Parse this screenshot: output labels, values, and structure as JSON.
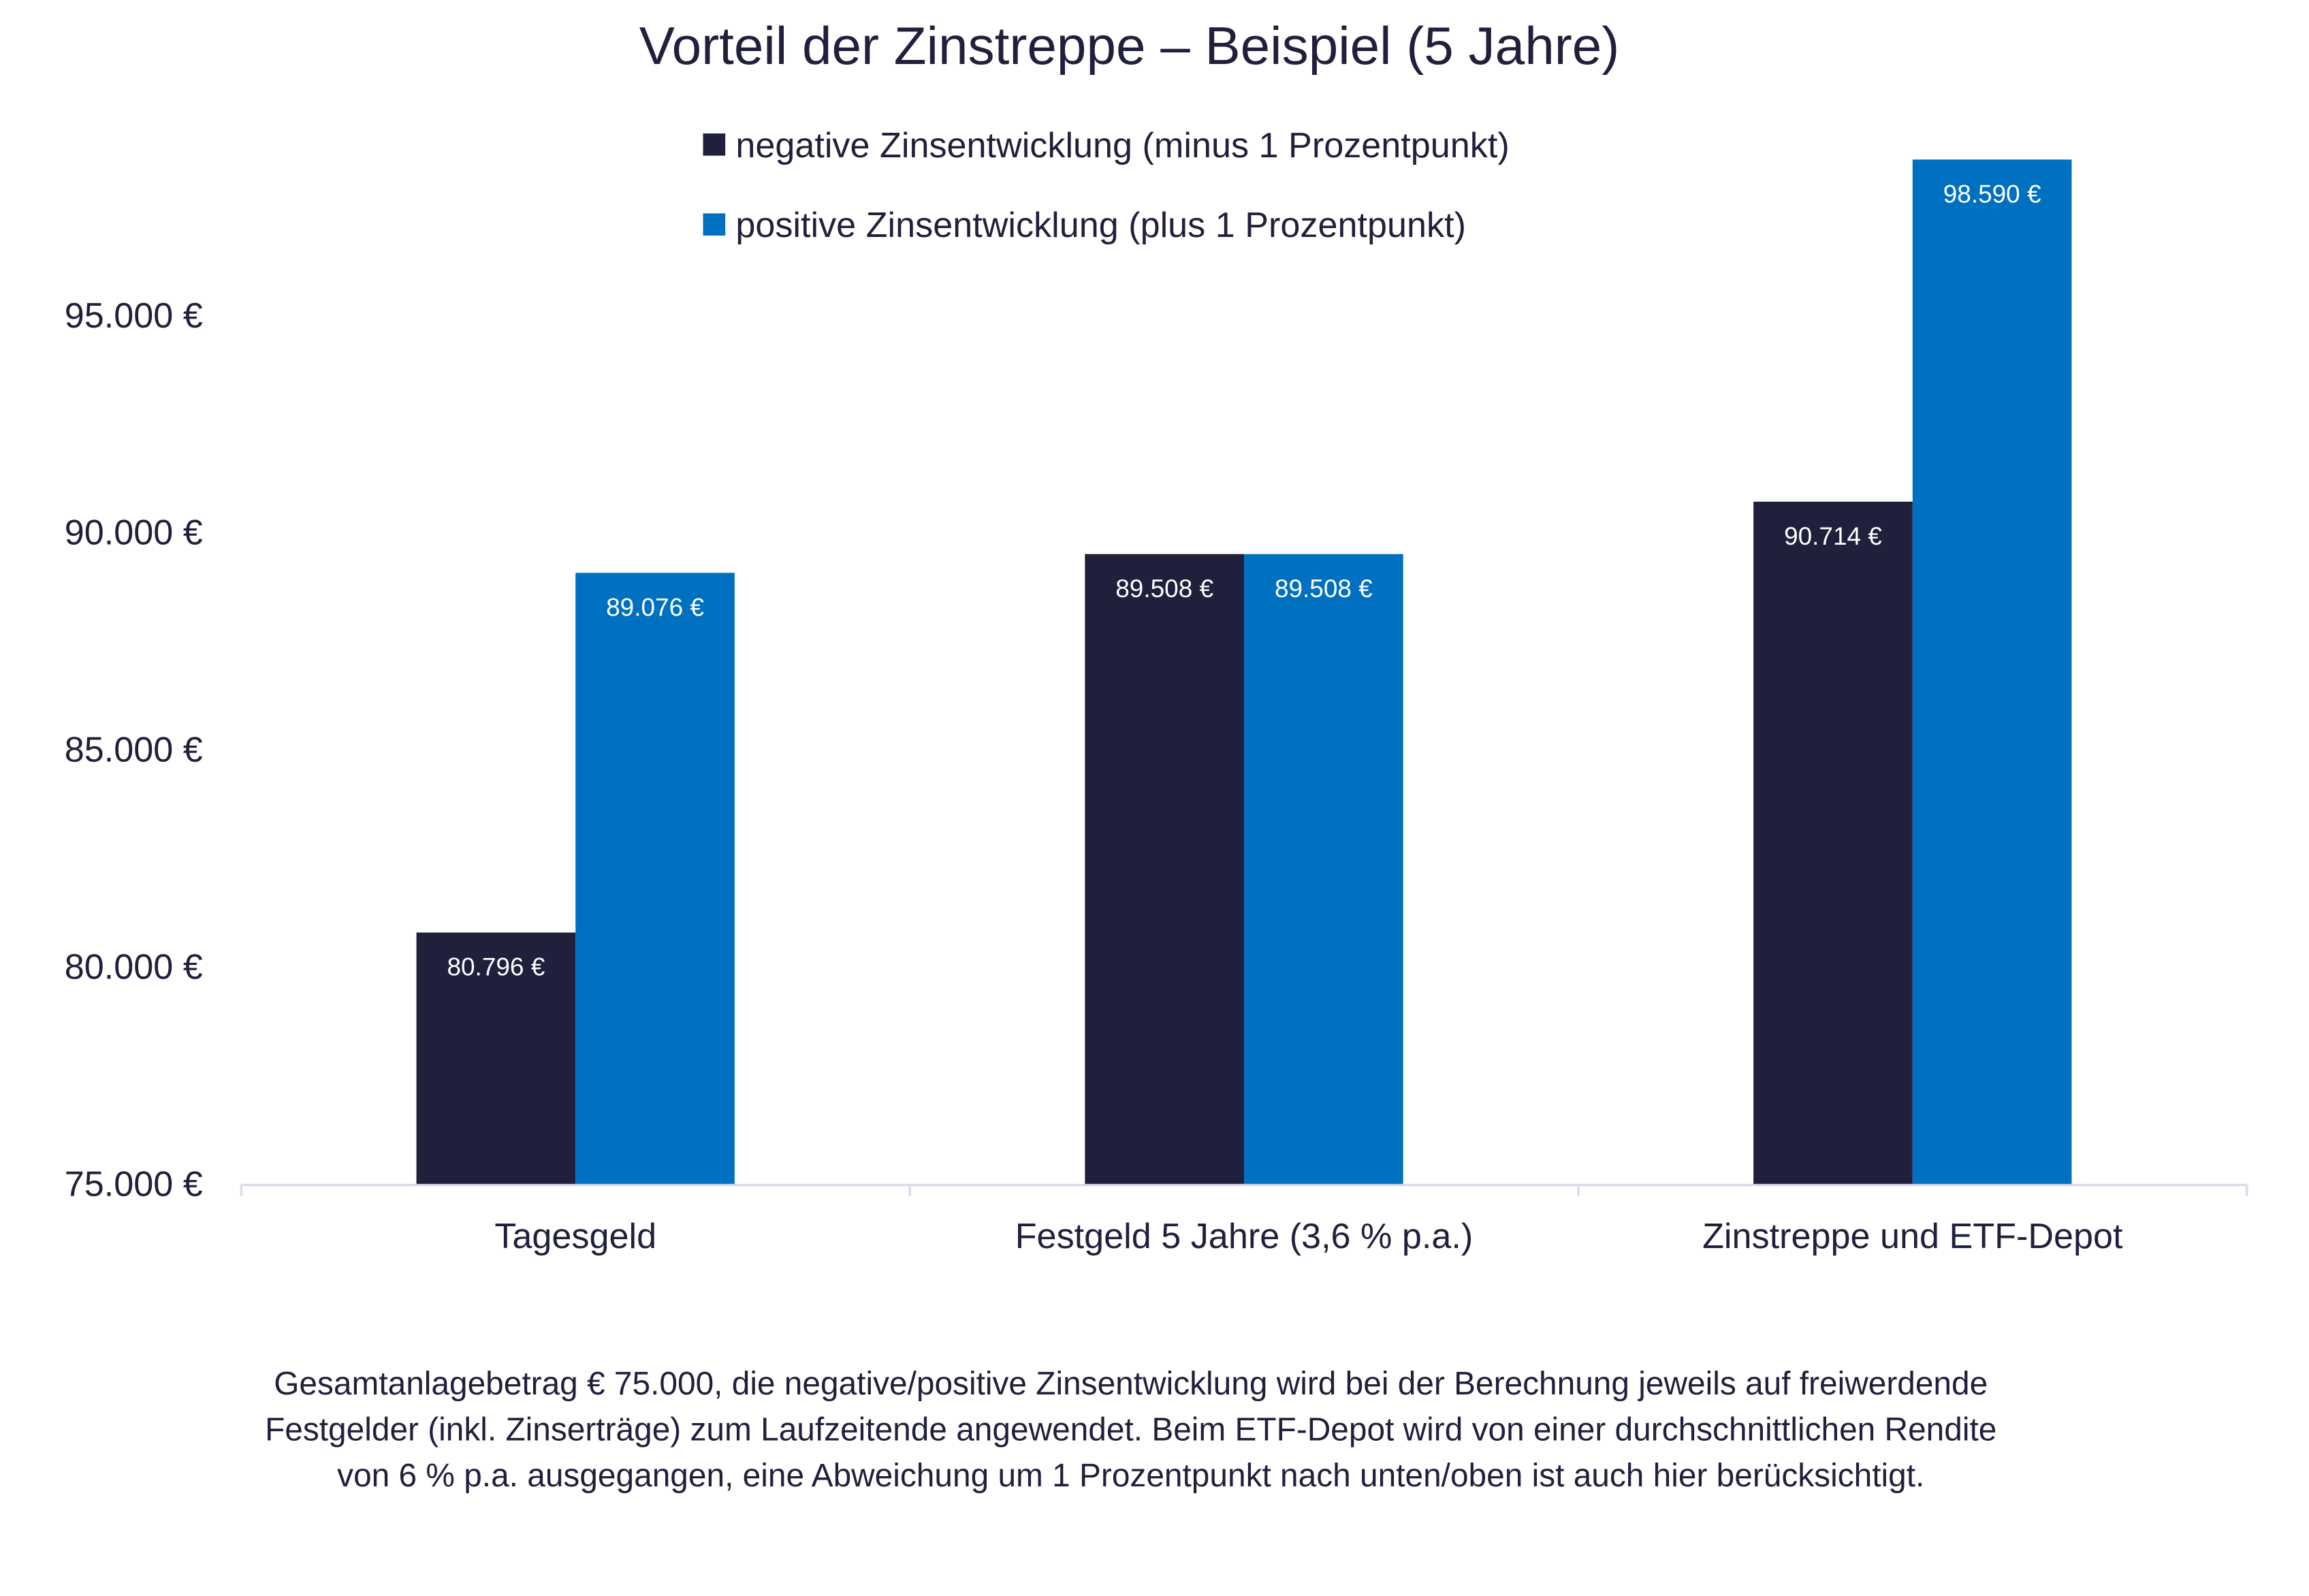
{
  "chart_data": {
    "type": "bar",
    "title": "Vorteil der Zinstreppe – Beispiel (5 Jahre)",
    "categories": [
      "Tagesgeld",
      "Festgeld 5 Jahre (3,6 % p.a.)",
      "Zinstreppe und ETF-Depot"
    ],
    "series": [
      {
        "name": "negative Zinsentwicklung (minus 1 Prozentpunkt)",
        "color": "#20203c",
        "values": [
          80796,
          89508,
          90714
        ],
        "labels": [
          "80.796 €",
          "89.508 €",
          "90.714 €"
        ]
      },
      {
        "name": "positive Zinsentwicklung (plus 1 Prozentpunkt)",
        "color": "#0070c0",
        "values": [
          89076,
          89508,
          98590
        ],
        "labels": [
          "89.076 €",
          "89.508 €",
          "98.590 €"
        ]
      }
    ],
    "yticks": [
      75000,
      80000,
      85000,
      90000,
      95000
    ],
    "ytick_labels": [
      "75.000 €",
      "80.000 €",
      "85.000 €",
      "90.000 €",
      "95.000 €"
    ],
    "ylim": [
      75000,
      98590
    ],
    "grid": false,
    "legend": "top-center",
    "xlabel": "",
    "ylabel": ""
  },
  "footnote": [
    "Gesamtanlagebetrag € 75.000, die negative/positive Zinsentwicklung wird bei der Berechnung jeweils auf freiwerdende",
    "Festgelder (inkl. Zinserträge) zum Laufzeitende angewendet. Beim ETF-Depot wird von einer durchschnittlichen Rendite",
    "von 6 % p.a. ausgegangen, eine Abweichung um 1 Prozentpunkt nach unten/oben ist auch hier berücksichtigt."
  ]
}
